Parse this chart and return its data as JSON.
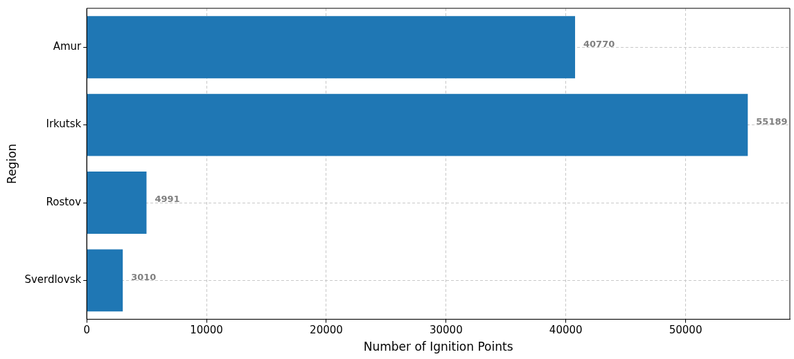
{
  "chart_data": {
    "type": "bar",
    "orientation": "horizontal",
    "xlabel": "Number of Ignition Points",
    "ylabel": "Region",
    "categories": [
      "Amur",
      "Irkutsk",
      "Rostov",
      "Sverdlovsk"
    ],
    "values": [
      40770,
      55189,
      4991,
      3010
    ],
    "color": "#1f77b4",
    "xlim": [
      0,
      58700
    ],
    "xticks": [
      0,
      10000,
      20000,
      30000,
      40000,
      50000
    ],
    "grid": true,
    "data_labels": true,
    "legend": false
  }
}
